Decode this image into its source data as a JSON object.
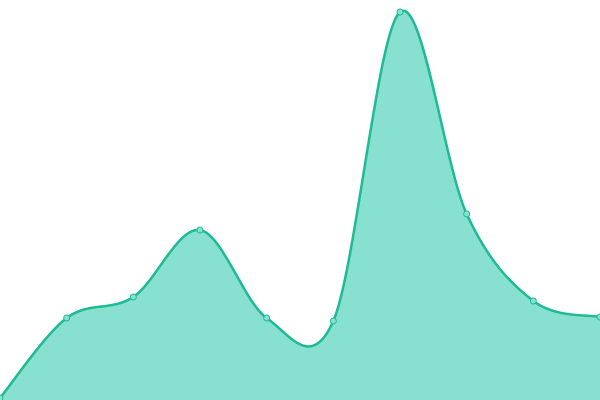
{
  "chart_data": {
    "type": "area",
    "x": [
      0,
      1,
      2,
      3,
      4,
      5,
      6,
      7,
      8,
      9
    ],
    "values": [
      0.5,
      20.5,
      25.75,
      42.5,
      20.5,
      19.75,
      97,
      46.5,
      24.75,
      20.75
    ],
    "ylim": [
      0,
      100
    ],
    "curve": "smooth",
    "grid": false,
    "axes_visible": false,
    "legend": "none",
    "colors": {
      "line": "#1dba94",
      "fill": "#88e0d0",
      "marker": "#88e0d0"
    }
  }
}
